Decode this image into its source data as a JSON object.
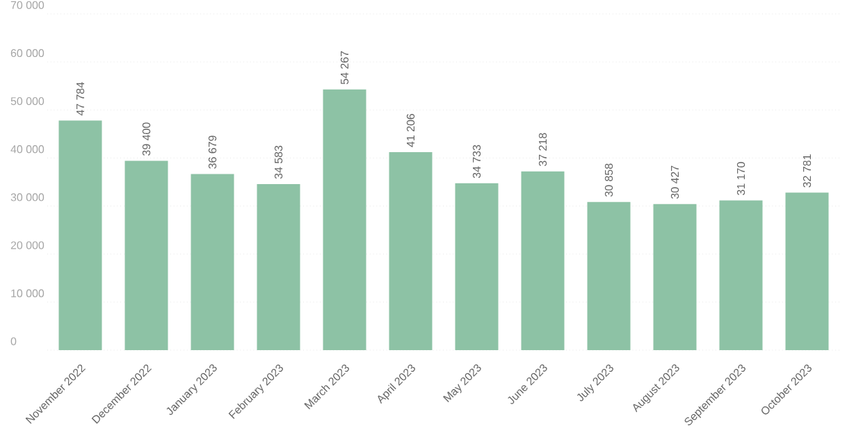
{
  "chart_data": {
    "type": "bar",
    "color": "#8dc2a5",
    "grid": "y",
    "categories": [
      "November 2022",
      "December 2022",
      "January 2023",
      "February 2023",
      "March 2023",
      "April 2023",
      "May 2023",
      "June 2023",
      "July 2023",
      "August 2023",
      "September 2023",
      "October 2023"
    ],
    "values": [
      47784,
      39400,
      36679,
      34583,
      54267,
      41206,
      34733,
      37218,
      30858,
      30427,
      31170,
      32781
    ],
    "value_labels": [
      "47 784",
      "39 400",
      "36 679",
      "34 583",
      "54 267",
      "41 206",
      "34 733",
      "37 218",
      "30 858",
      "30 427",
      "31 170",
      "32 781"
    ],
    "ylim": [
      0,
      70000
    ],
    "yticks": [
      {
        "value": 0,
        "label": "0"
      },
      {
        "value": 10000,
        "label": "10 000"
      },
      {
        "value": 20000,
        "label": "20 000"
      },
      {
        "value": 30000,
        "label": "30 000"
      },
      {
        "value": 40000,
        "label": "40 000"
      },
      {
        "value": 50000,
        "label": "50 000"
      },
      {
        "value": 60000,
        "label": "60 000"
      },
      {
        "value": 70000,
        "label": "70 000"
      }
    ]
  }
}
